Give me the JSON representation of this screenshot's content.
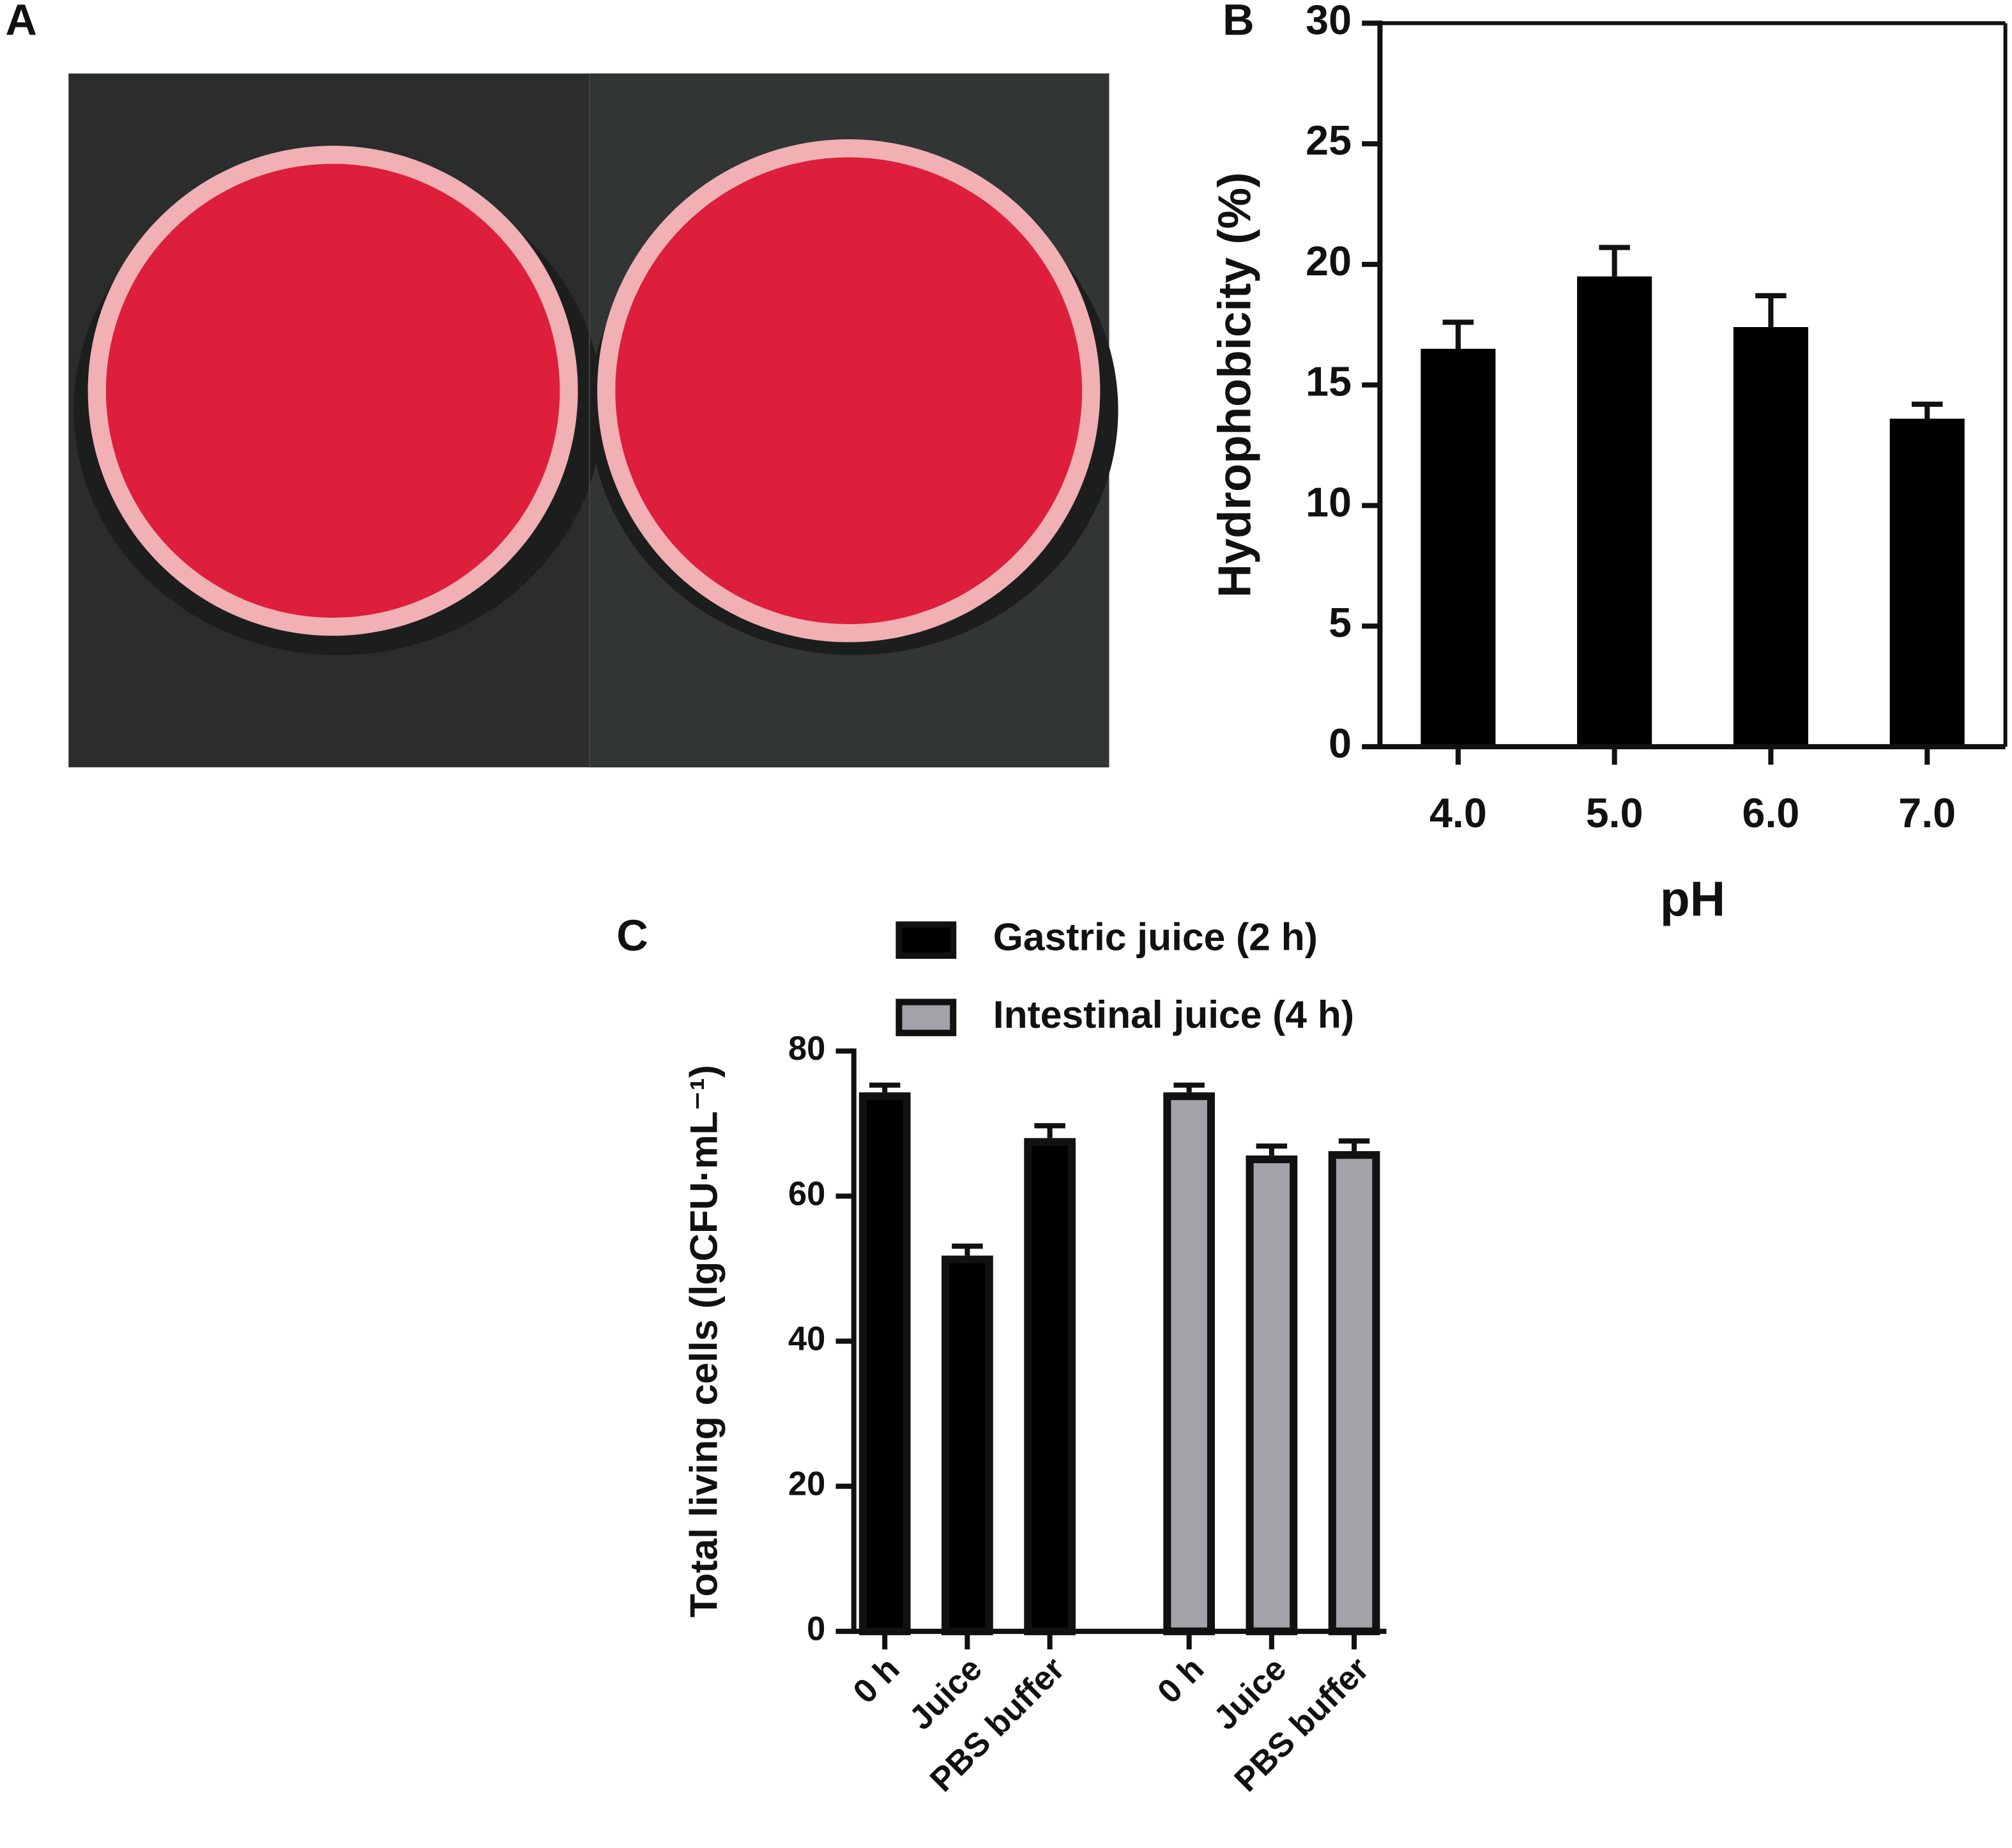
{
  "photo": {
    "panel": "A"
  },
  "chart_data": [
    {
      "type": "bar",
      "panel": "B",
      "ylabel": "Hydrophobicity (%)",
      "xlabel": "pH",
      "categories": [
        "4.0",
        "5.0",
        "6.0",
        "7.0"
      ],
      "values": [
        16.5,
        19.5,
        17.4,
        13.6
      ],
      "errors": [
        1.1,
        1.2,
        1.3,
        0.6
      ],
      "color": "#000000",
      "ylim": [
        0,
        30
      ],
      "yticks": [
        0,
        5,
        10,
        15,
        20,
        25,
        30
      ],
      "frame": true
    },
    {
      "type": "bar",
      "panel": "C",
      "ylabel": "Total living cells (lgCFU·mL⁻¹)",
      "categories": [
        "0 h",
        "Juice",
        "PBS buffer"
      ],
      "series": [
        {
          "name": "Gastric juice (2 h)",
          "color": "#000000",
          "values": [
            74.3,
            51.8,
            68.0
          ],
          "errors": [
            1.0,
            1.3,
            1.7
          ]
        },
        {
          "name": "Intestinal juice (4 h)",
          "color": "#a2a2a8",
          "values": [
            74.3,
            65.6,
            66.2
          ],
          "errors": [
            1.0,
            1.3,
            1.4
          ]
        }
      ],
      "ylim": [
        0,
        80
      ],
      "yticks": [
        0,
        20,
        40,
        60,
        80
      ],
      "legend": "top"
    }
  ]
}
